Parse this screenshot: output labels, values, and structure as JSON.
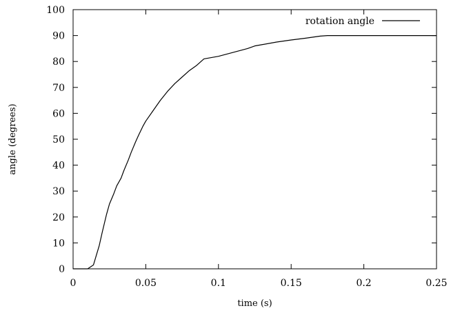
{
  "chart_data": {
    "type": "line",
    "title": "",
    "xlabel": "time (s)",
    "ylabel": "angle (degrees)",
    "xlim": [
      0,
      0.25
    ],
    "ylim": [
      0,
      100
    ],
    "x_ticks": [
      "0",
      "0.05",
      "0.1",
      "0.15",
      "0.2",
      "0.25"
    ],
    "y_ticks": [
      "0",
      "10",
      "20",
      "30",
      "40",
      "50",
      "60",
      "70",
      "80",
      "90",
      "100"
    ],
    "grid": false,
    "legend_position": "top-right",
    "series": [
      {
        "name": "rotation angle",
        "color": "#000000",
        "x": [
          0,
          0.01,
          0.014,
          0.018,
          0.02,
          0.023,
          0.025,
          0.028,
          0.03,
          0.033,
          0.035,
          0.038,
          0.04,
          0.043,
          0.045,
          0.048,
          0.05,
          0.055,
          0.06,
          0.065,
          0.07,
          0.075,
          0.08,
          0.085,
          0.088,
          0.09,
          0.1,
          0.11,
          0.12,
          0.125,
          0.13,
          0.14,
          0.15,
          0.16,
          0.17,
          0.175,
          0.18,
          0.2,
          0.22,
          0.25
        ],
        "y": [
          0,
          0,
          1.5,
          9,
          14,
          21,
          25,
          29,
          32,
          35,
          38,
          42,
          45,
          49,
          51.5,
          55,
          57,
          61,
          65,
          68.5,
          71.5,
          74,
          76.5,
          78.5,
          80,
          81,
          82,
          83.5,
          85,
          86,
          86.5,
          87.5,
          88.3,
          89,
          89.8,
          90,
          90,
          90,
          90,
          90
        ]
      }
    ]
  }
}
